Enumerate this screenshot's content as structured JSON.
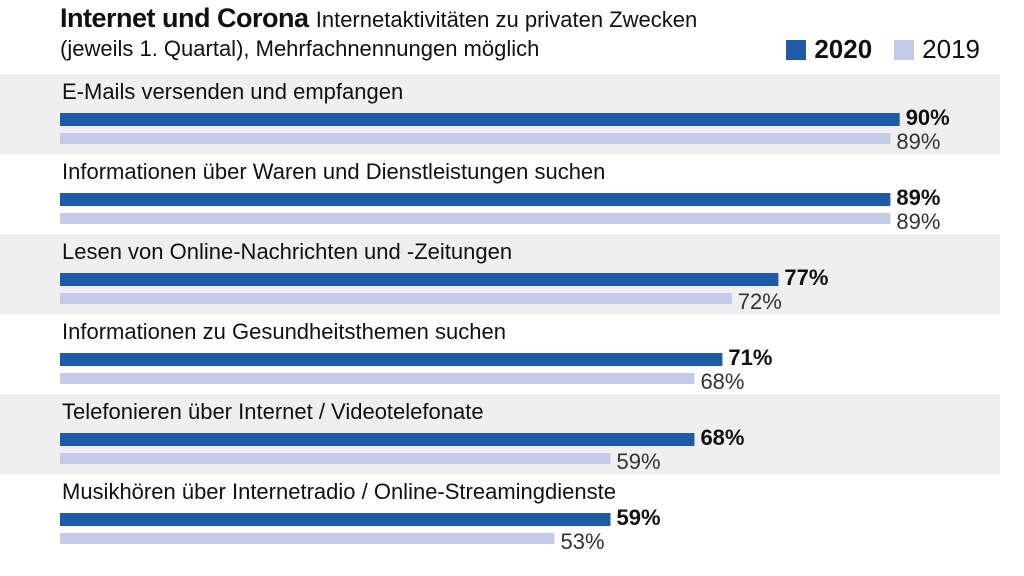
{
  "header": {
    "title": "Internet und Corona",
    "subtitle_1": "Internetaktivitäten zu privaten Zwecken",
    "subtitle_2": "(jeweils 1. Quartal), Mehrfachnennungen möglich"
  },
  "legend": {
    "label_2020": "2020",
    "label_2019": "2019"
  },
  "colors": {
    "series_2020": "#1f5aa6",
    "series_2019": "#c3cbe8",
    "band": "#efefef"
  },
  "chart_data": {
    "type": "bar",
    "orientation": "horizontal",
    "title": "Internet und Corona",
    "subtitle": "Internetaktivitäten zu privaten Zwecken (jeweils 1. Quartal), Mehrfachnennungen möglich",
    "categories": [
      "E-Mails versenden und empfangen",
      "Informationen über Waren und Dienstleistungen suchen",
      "Lesen von Online-Nachrichten und -Zeitungen",
      "Informationen zu Gesundheitsthemen suchen",
      "Telefonieren über Internet / Videotelefonate",
      "Musikhören über Internetradio / Online-Streamingdienste"
    ],
    "series": [
      {
        "name": "2020",
        "values": [
          90,
          89,
          77,
          71,
          68,
          59
        ],
        "labels": [
          "90%",
          "89%",
          "77%",
          "71%",
          "68%",
          "59%"
        ]
      },
      {
        "name": "2019",
        "values": [
          89,
          89,
          72,
          68,
          59,
          53
        ],
        "labels": [
          "89%",
          "89%",
          "72%",
          "68%",
          "59%",
          "53%"
        ]
      }
    ],
    "unit": "%",
    "xlim": [
      0,
      100
    ],
    "legend_position": "top-right",
    "grid": false
  }
}
